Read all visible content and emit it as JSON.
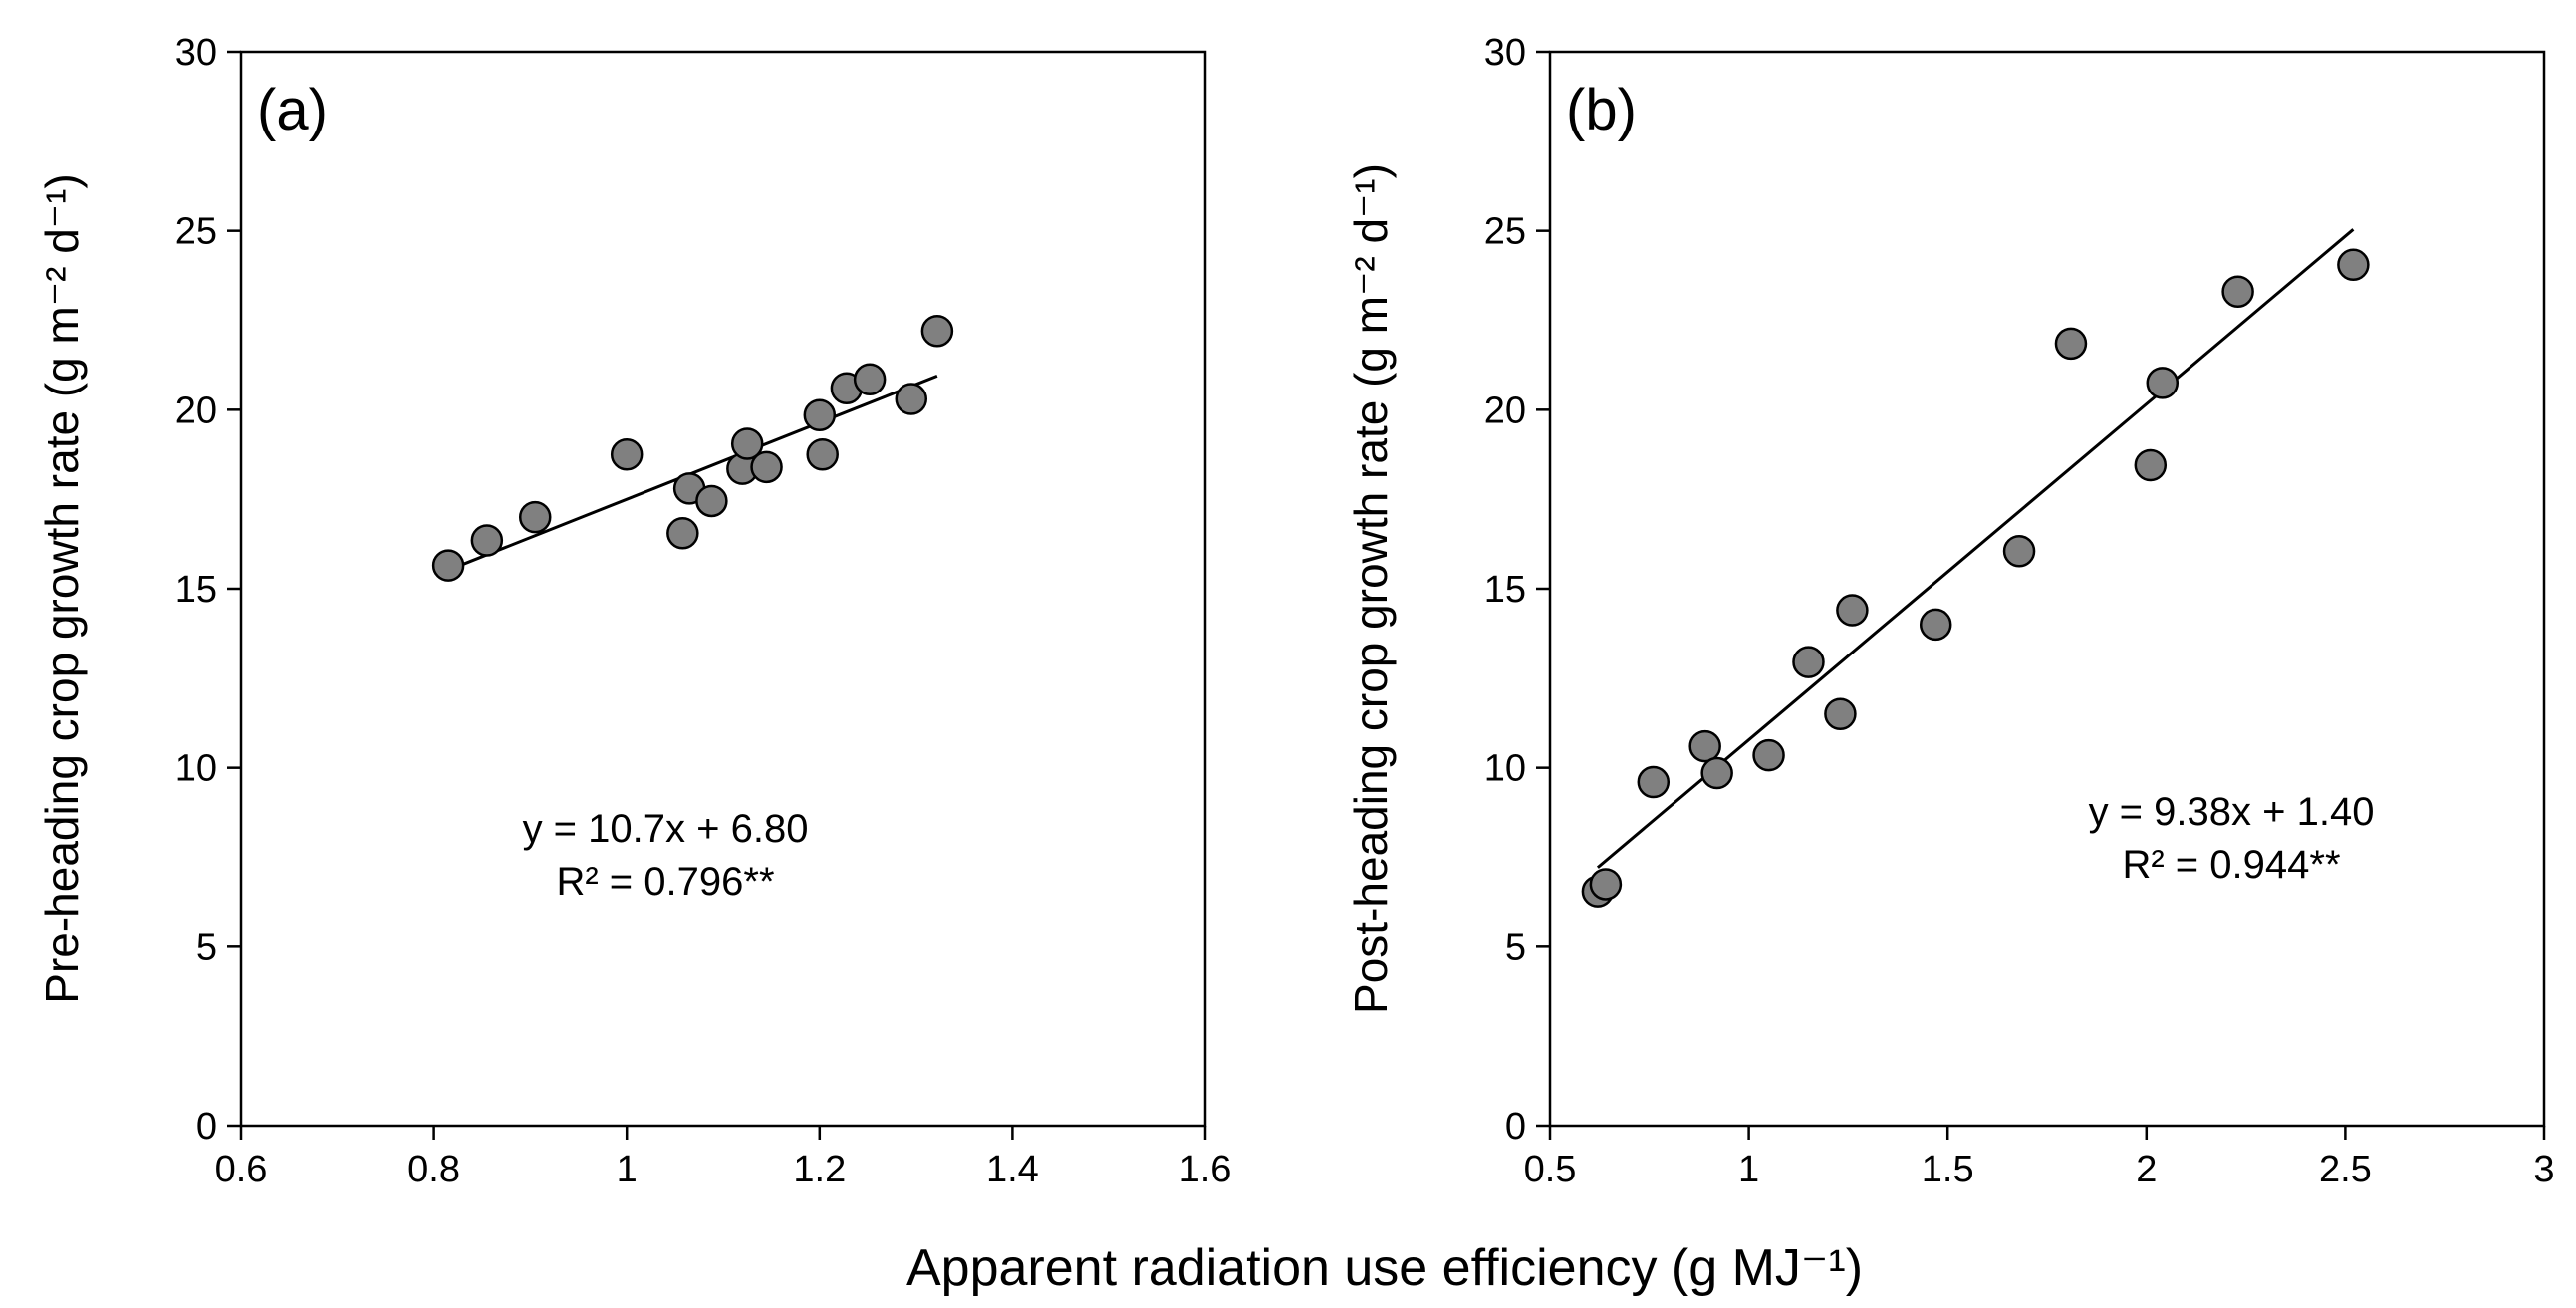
{
  "figure": {
    "xlabel": "Apparent radiation use efficiency (g MJ⁻¹)"
  },
  "colors": {
    "marker_fill": "#808080",
    "marker_stroke": "#000000",
    "line": "#000000",
    "axis": "#000000"
  },
  "chart_data": [
    {
      "type": "scatter",
      "panel_label": "(a)",
      "xlabel": "Apparent radiation use efficiency (g MJ⁻¹)",
      "ylabel": "Pre-heading crop growth rate (g m⁻² d⁻¹)",
      "xlim": [
        0.6,
        1.6
      ],
      "ylim": [
        0,
        30
      ],
      "xticks": [
        0.6,
        0.8,
        1,
        1.2,
        1.4,
        1.6
      ],
      "xtick_labels": [
        "0.6",
        "0.8",
        "1",
        "1.2",
        "1.4",
        "1.6"
      ],
      "yticks": [
        0,
        5,
        10,
        15,
        20,
        25,
        30
      ],
      "ytick_labels": [
        "0",
        "5",
        "10",
        "15",
        "20",
        "25",
        "30"
      ],
      "grid": false,
      "points": [
        {
          "x": 0.815,
          "y": 15.65
        },
        {
          "x": 0.855,
          "y": 16.35
        },
        {
          "x": 0.905,
          "y": 17.0
        },
        {
          "x": 1.0,
          "y": 18.75
        },
        {
          "x": 1.058,
          "y": 16.55
        },
        {
          "x": 1.065,
          "y": 17.8
        },
        {
          "x": 1.088,
          "y": 17.45
        },
        {
          "x": 1.12,
          "y": 18.35
        },
        {
          "x": 1.125,
          "y": 19.05
        },
        {
          "x": 1.145,
          "y": 18.4
        },
        {
          "x": 1.2,
          "y": 19.85
        },
        {
          "x": 1.203,
          "y": 18.75
        },
        {
          "x": 1.228,
          "y": 20.6
        },
        {
          "x": 1.252,
          "y": 20.85
        },
        {
          "x": 1.295,
          "y": 20.3
        },
        {
          "x": 1.322,
          "y": 22.2
        }
      ],
      "fit": {
        "slope": 10.7,
        "intercept": 6.8,
        "x_range": [
          0.815,
          1.322
        ]
      },
      "equation": "y = 10.7x + 6.80",
      "r2": "R² = 0.796**"
    },
    {
      "type": "scatter",
      "panel_label": "(b)",
      "xlabel": "Apparent radiation use efficiency (g MJ⁻¹)",
      "ylabel": "Post-heading crop growth rate (g m⁻² d⁻¹)",
      "xlim": [
        0.5,
        3
      ],
      "ylim": [
        0,
        30
      ],
      "xticks": [
        0.5,
        1,
        1.5,
        2,
        2.5,
        3
      ],
      "xtick_labels": [
        "0.5",
        "1",
        "1.5",
        "2",
        "2.5",
        "3"
      ],
      "yticks": [
        0,
        5,
        10,
        15,
        20,
        25,
        30
      ],
      "ytick_labels": [
        "0",
        "5",
        "10",
        "15",
        "20",
        "25",
        "30"
      ],
      "grid": false,
      "points": [
        {
          "x": 0.62,
          "y": 6.55
        },
        {
          "x": 0.64,
          "y": 6.75
        },
        {
          "x": 0.76,
          "y": 9.6
        },
        {
          "x": 0.89,
          "y": 10.6
        },
        {
          "x": 0.92,
          "y": 9.85
        },
        {
          "x": 1.05,
          "y": 10.35
        },
        {
          "x": 1.15,
          "y": 12.95
        },
        {
          "x": 1.23,
          "y": 11.5
        },
        {
          "x": 1.26,
          "y": 14.4
        },
        {
          "x": 1.47,
          "y": 14.0
        },
        {
          "x": 1.68,
          "y": 16.05
        },
        {
          "x": 1.81,
          "y": 21.85
        },
        {
          "x": 2.01,
          "y": 18.45
        },
        {
          "x": 2.04,
          "y": 20.75
        },
        {
          "x": 2.23,
          "y": 23.3
        },
        {
          "x": 2.52,
          "y": 24.05
        }
      ],
      "fit": {
        "slope": 9.38,
        "intercept": 1.4,
        "x_range": [
          0.62,
          2.52
        ]
      },
      "equation": "y = 9.38x + 1.40",
      "r2": "R² = 0.944**"
    }
  ]
}
